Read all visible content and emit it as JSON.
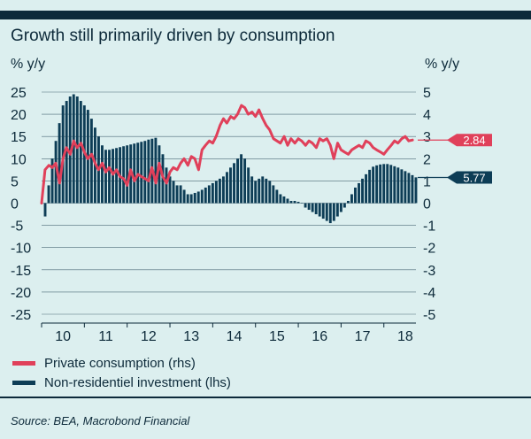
{
  "chart_data": {
    "type": "bar+line",
    "title": "Growth still primarily driven by consumption",
    "ylabel_left": "% y/y",
    "ylabel_right": "% y/y",
    "ylim_left": [
      -25,
      25
    ],
    "ylim_right": [
      -5,
      5
    ],
    "yticks_left": [
      "25",
      "20",
      "15",
      "10",
      "5",
      "0",
      "-5",
      "-10",
      "-15",
      "-20",
      "-25"
    ],
    "yticks_right": [
      "5",
      "4",
      "3",
      "2",
      "1",
      "0",
      "-1",
      "-2",
      "-3",
      "-4",
      "-5"
    ],
    "x_range": [
      2009.75,
      2018.5
    ],
    "x_ticks": [
      {
        "label": "10",
        "value": 2010.25
      },
      {
        "label": "11",
        "value": 2011.25
      },
      {
        "label": "12",
        "value": 2012.25
      },
      {
        "label": "13",
        "value": 2013.25
      },
      {
        "label": "14",
        "value": 2014.25
      },
      {
        "label": "15",
        "value": 2015.25
      },
      {
        "label": "16",
        "value": 2016.25
      },
      {
        "label": "17",
        "value": 2017.25
      },
      {
        "label": "18",
        "value": 2018.25
      }
    ],
    "grid": true,
    "series": [
      {
        "name": "Non-residentiel investment (lhs)",
        "type": "bar",
        "axis": "left",
        "color": "#0d3d56",
        "start": 2009.833,
        "step": 0.08333,
        "values": [
          -3,
          4,
          10,
          14,
          18,
          22,
          23,
          24,
          24.5,
          24,
          23,
          22,
          21,
          19,
          17,
          15,
          13,
          12,
          12,
          12.2,
          12.4,
          12.6,
          12.8,
          13,
          13.2,
          13.4,
          13.6,
          13.8,
          14,
          14.3,
          14.5,
          14.7,
          13,
          11,
          8,
          6,
          5,
          4,
          4,
          3,
          2,
          2,
          2.3,
          2.6,
          3,
          3.5,
          4,
          4.5,
          5,
          5.5,
          6,
          7,
          8,
          9,
          10,
          11,
          10,
          8,
          6,
          5,
          5.5,
          6,
          5.5,
          5,
          4,
          3,
          2,
          1.5,
          1,
          0.5,
          0.5,
          0.3,
          0,
          -1,
          -1.5,
          -2,
          -2.5,
          -3,
          -3.5,
          -4,
          -4.5,
          -4,
          -3,
          -2,
          -1,
          0.5,
          2,
          3.5,
          4.5,
          5.5,
          6.5,
          7.5,
          8.2,
          8.5,
          8.7,
          8.8,
          8.8,
          8.6,
          8.3,
          8,
          7.6,
          7.2,
          6.8,
          6.3,
          5.8
        ]
      },
      {
        "name": "Private consumption (rhs)",
        "type": "line",
        "axis": "right",
        "color": "#e0405a",
        "x": [
          2009.75,
          2009.83,
          2009.92,
          2010.0,
          2010.08,
          2010.17,
          2010.25,
          2010.33,
          2010.42,
          2010.5,
          2010.58,
          2010.67,
          2010.75,
          2010.83,
          2010.92,
          2011.0,
          2011.08,
          2011.17,
          2011.25,
          2011.33,
          2011.42,
          2011.5,
          2011.58,
          2011.67,
          2011.75,
          2011.83,
          2011.92,
          2012.0,
          2012.08,
          2012.17,
          2012.25,
          2012.33,
          2012.42,
          2012.5,
          2012.58,
          2012.67,
          2012.75,
          2012.83,
          2012.92,
          2013.0,
          2013.08,
          2013.17,
          2013.25,
          2013.33,
          2013.42,
          2013.5,
          2013.58,
          2013.67,
          2013.75,
          2013.83,
          2013.92,
          2014.0,
          2014.08,
          2014.17,
          2014.25,
          2014.33,
          2014.42,
          2014.5,
          2014.58,
          2014.67,
          2014.75,
          2014.83,
          2014.92,
          2015.0,
          2015.08,
          2015.17,
          2015.25,
          2015.33,
          2015.42,
          2015.5,
          2015.58,
          2015.67,
          2015.75,
          2015.83,
          2015.92,
          2016.0,
          2016.08,
          2016.17,
          2016.25,
          2016.33,
          2016.42,
          2016.5,
          2016.58,
          2016.67,
          2016.75,
          2016.83,
          2016.92,
          2017.0,
          2017.08,
          2017.17,
          2017.25,
          2017.33,
          2017.42,
          2017.5,
          2017.58,
          2017.67,
          2017.75,
          2017.83,
          2017.92,
          2018.0,
          2018.08,
          2018.17,
          2018.25,
          2018.33,
          2018.42
        ],
        "values": [
          0,
          1.5,
          1.7,
          1.6,
          1.8,
          0.9,
          2.0,
          2.5,
          2.2,
          2.8,
          2.5,
          2.7,
          2.3,
          2.0,
          2.2,
          1.8,
          1.5,
          1.8,
          1.4,
          1.6,
          1.3,
          1.5,
          1.2,
          1.1,
          0.8,
          1.5,
          1.0,
          1.3,
          1.2,
          1.1,
          1.0,
          1.6,
          0.9,
          1.8,
          1.2,
          0.9,
          1.4,
          1.6,
          1.5,
          1.8,
          2.0,
          1.7,
          2.1,
          2.0,
          1.5,
          2.4,
          2.6,
          2.8,
          2.7,
          3.0,
          3.5,
          3.8,
          3.6,
          3.9,
          3.8,
          4.0,
          4.4,
          4.3,
          4.0,
          4.1,
          3.9,
          4.2,
          3.8,
          3.5,
          3.3,
          2.9,
          2.8,
          2.7,
          3.0,
          2.6,
          2.9,
          2.7,
          2.9,
          2.8,
          2.6,
          2.8,
          2.7,
          2.5,
          2.9,
          2.8,
          2.9,
          2.6,
          2.0,
          2.7,
          2.4,
          2.3,
          2.2,
          2.4,
          2.5,
          2.6,
          2.5,
          2.8,
          2.7,
          2.5,
          2.4,
          2.3,
          2.2,
          2.4,
          2.6,
          2.8,
          2.7,
          2.9,
          3.0,
          2.8,
          2.84
        ]
      }
    ],
    "annotations": [
      {
        "series": "Private consumption (rhs)",
        "label": "2.84",
        "value": 2.84,
        "axis": "right",
        "color": "#e0405a"
      },
      {
        "series": "Non-residentiel investment (lhs)",
        "label": "5.77",
        "value": 5.77,
        "axis": "left",
        "color": "#0d3d56"
      }
    ]
  },
  "legend": {
    "consumption": "Private consumption (rhs)",
    "investment": "Non-residentiel investment (lhs)"
  },
  "source": "Source: BEA, Macrobond Financial"
}
